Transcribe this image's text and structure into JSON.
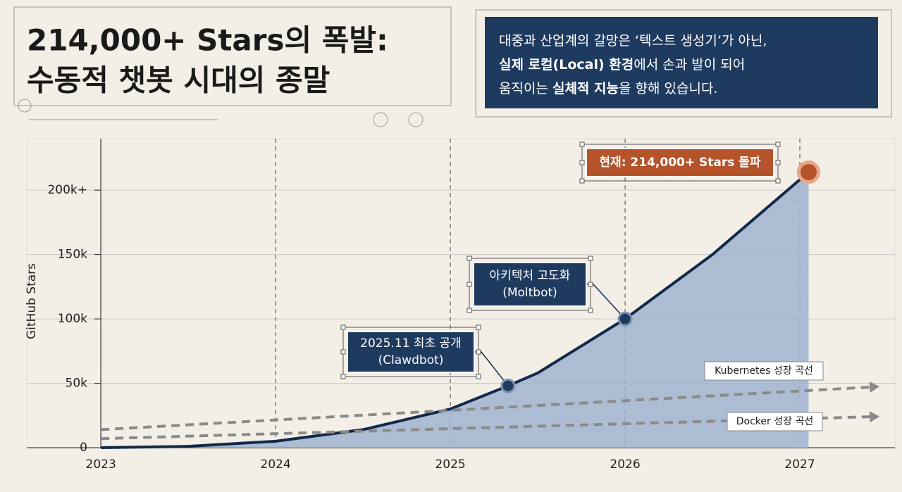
{
  "chart_data": {
    "type": "line",
    "title": [
      "214,000+ Stars의 폭발:",
      "수동적 챗봇 시대의 종말"
    ],
    "quote": [
      [
        {
          "text": "대중과 산업계의 갈망은 ‘텍스트 생성기’가 아닌,"
        }
      ],
      [
        {
          "text": "실제 로컬(Local) 환경",
          "bold": true
        },
        {
          "text": "에서 손과 발이 되어"
        }
      ],
      [
        {
          "text": "움직이는 "
        },
        {
          "text": "실체적 지능",
          "bold": true
        },
        {
          "text": "을 향해 있습니다."
        }
      ]
    ],
    "ylabel": "GitHub Stars",
    "xlim": [
      2022.6,
      2027.5
    ],
    "xticks": [
      2023,
      2024,
      2025,
      2026,
      2027
    ],
    "ylim": [
      0,
      240000
    ],
    "yticks": [
      0,
      {
        "value": 50000,
        "label": "50k"
      },
      {
        "value": 100000,
        "label": "100k"
      },
      {
        "value": 150000,
        "label": "150k"
      },
      {
        "value": 200000,
        "label": "200k+"
      }
    ],
    "grid": true,
    "series": [
      {
        "color": "#13294b",
        "fill": "#9db3cf",
        "x": [
          2023,
          2023.5,
          2024,
          2024.5,
          2025,
          2025.33,
          2025.5,
          2026,
          2026.5,
          2027.05
        ],
        "values": [
          0,
          1000,
          5000,
          14000,
          30000,
          48000,
          58000,
          100000,
          150000,
          214000
        ]
      },
      {
        "name": "Kubernetes 성장 곡선",
        "color": "#8a8a8a",
        "dashed": true,
        "x": [
          2023,
          2027.4
        ],
        "values": [
          14000,
          47000
        ]
      },
      {
        "name": "Docker 성장 곡선",
        "color": "#8a8a8a",
        "dashed": true,
        "x": [
          2023,
          2027.4
        ],
        "values": [
          7000,
          24000
        ]
      }
    ],
    "annotations": [
      {
        "x": 2025.33,
        "y": 48000,
        "lines": [
          "2025.11 최초 공개",
          "(Clawdbot)"
        ],
        "color": "#1e3a5f"
      },
      {
        "x": 2026,
        "y": 100000,
        "lines": [
          "아키텍처 고도화",
          "(Moltbot)"
        ],
        "color": "#1e3a5f"
      },
      {
        "x": 2027.05,
        "y": 214000,
        "lines": [
          "현재: 214,000+ Stars 돌파"
        ],
        "color": "#b5532a"
      }
    ]
  }
}
